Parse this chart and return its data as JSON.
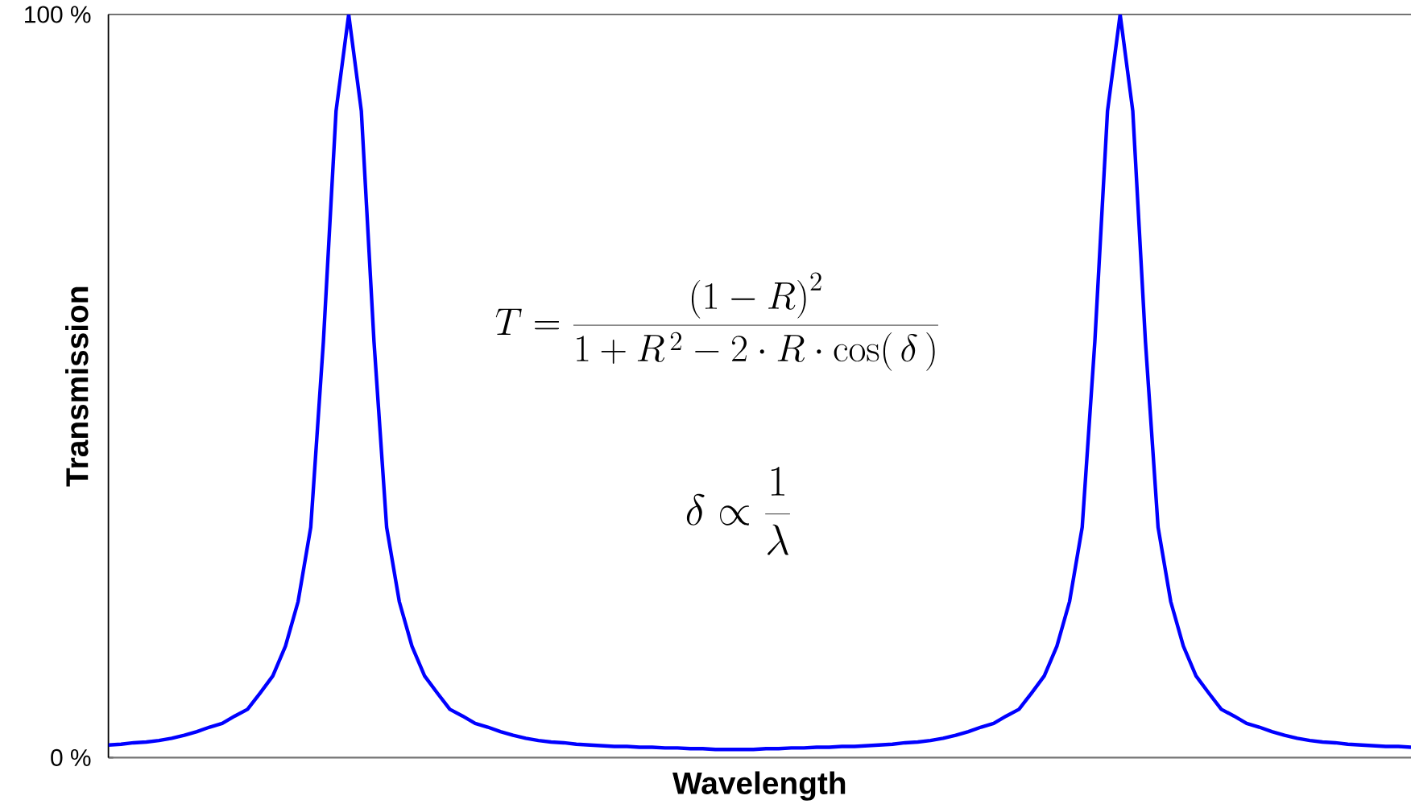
{
  "chart_data": {
    "type": "line",
    "xlabel": "Wavelength",
    "ylabel": "Transmission",
    "categories": [
      null,
      null,
      null,
      null,
      null,
      null,
      null,
      null,
      null,
      null,
      null,
      null,
      null,
      null,
      null,
      null,
      null,
      null,
      null,
      null,
      null,
      null,
      null,
      null,
      null,
      null,
      null,
      null,
      null,
      null,
      null,
      null,
      null,
      null,
      null,
      null,
      null,
      null,
      null,
      null,
      null,
      null,
      null,
      null,
      null,
      null,
      null,
      null,
      null,
      null,
      null,
      null,
      null,
      null,
      null,
      null,
      null,
      null,
      null,
      null,
      null,
      null,
      null,
      null,
      null,
      null,
      null,
      null,
      null,
      null,
      null,
      null,
      null,
      null,
      null,
      null,
      null,
      null,
      null,
      null,
      null,
      null,
      null,
      null,
      null,
      null,
      null,
      null,
      null,
      null,
      null,
      null,
      null,
      null,
      null,
      null,
      null,
      null,
      null,
      null,
      null,
      null,
      null,
      null
    ],
    "color": "#0000ff",
    "line_style": "solid",
    "values": [
      1.7,
      1.8,
      2.0,
      2.1,
      2.3,
      2.6,
      3.0,
      3.5,
      4.1,
      4.6,
      5.6,
      6.5,
      8.7,
      11,
      15,
      21,
      31,
      56,
      87,
      100,
      87,
      56,
      31,
      21,
      15,
      11,
      8.7,
      6.5,
      5.6,
      4.6,
      4.1,
      3.5,
      3.0,
      2.6,
      2.3,
      2.1,
      2.0,
      1.8,
      1.7,
      1.6,
      1.5,
      1.5,
      1.4,
      1.4,
      1.3,
      1.3,
      1.2,
      1.2,
      1.1,
      1.1,
      1.1,
      1.1,
      1.2,
      1.2,
      1.3,
      1.3,
      1.4,
      1.4,
      1.5,
      1.5,
      1.6,
      1.7,
      1.8,
      2.0,
      2.1,
      2.3,
      2.6,
      3.0,
      3.5,
      4.1,
      4.6,
      5.6,
      6.5,
      8.7,
      11,
      15,
      21,
      31,
      56,
      87,
      100,
      87,
      56,
      31,
      21,
      15,
      11,
      8.7,
      6.5,
      5.6,
      4.6,
      4.1,
      3.5,
      3.0,
      2.6,
      2.3,
      2.1,
      2.0,
      1.8,
      1.7,
      1.6,
      1.5,
      1.5,
      1.4
    ],
    "ylim": [
      0,
      100
    ],
    "yticks": [
      {
        "value": 0,
        "label": "0 %"
      },
      {
        "value": 100,
        "label": "100 %"
      }
    ],
    "annotations": [
      "T = \\frac{\\left(1-R\\right)^{2}}{1+R^{\\,2}-2\\cdot R\\cdot\\cos(\\,\\delta\\,)}",
      "\\delta\\propto\\frac{1}{\\lambda}"
    ]
  }
}
